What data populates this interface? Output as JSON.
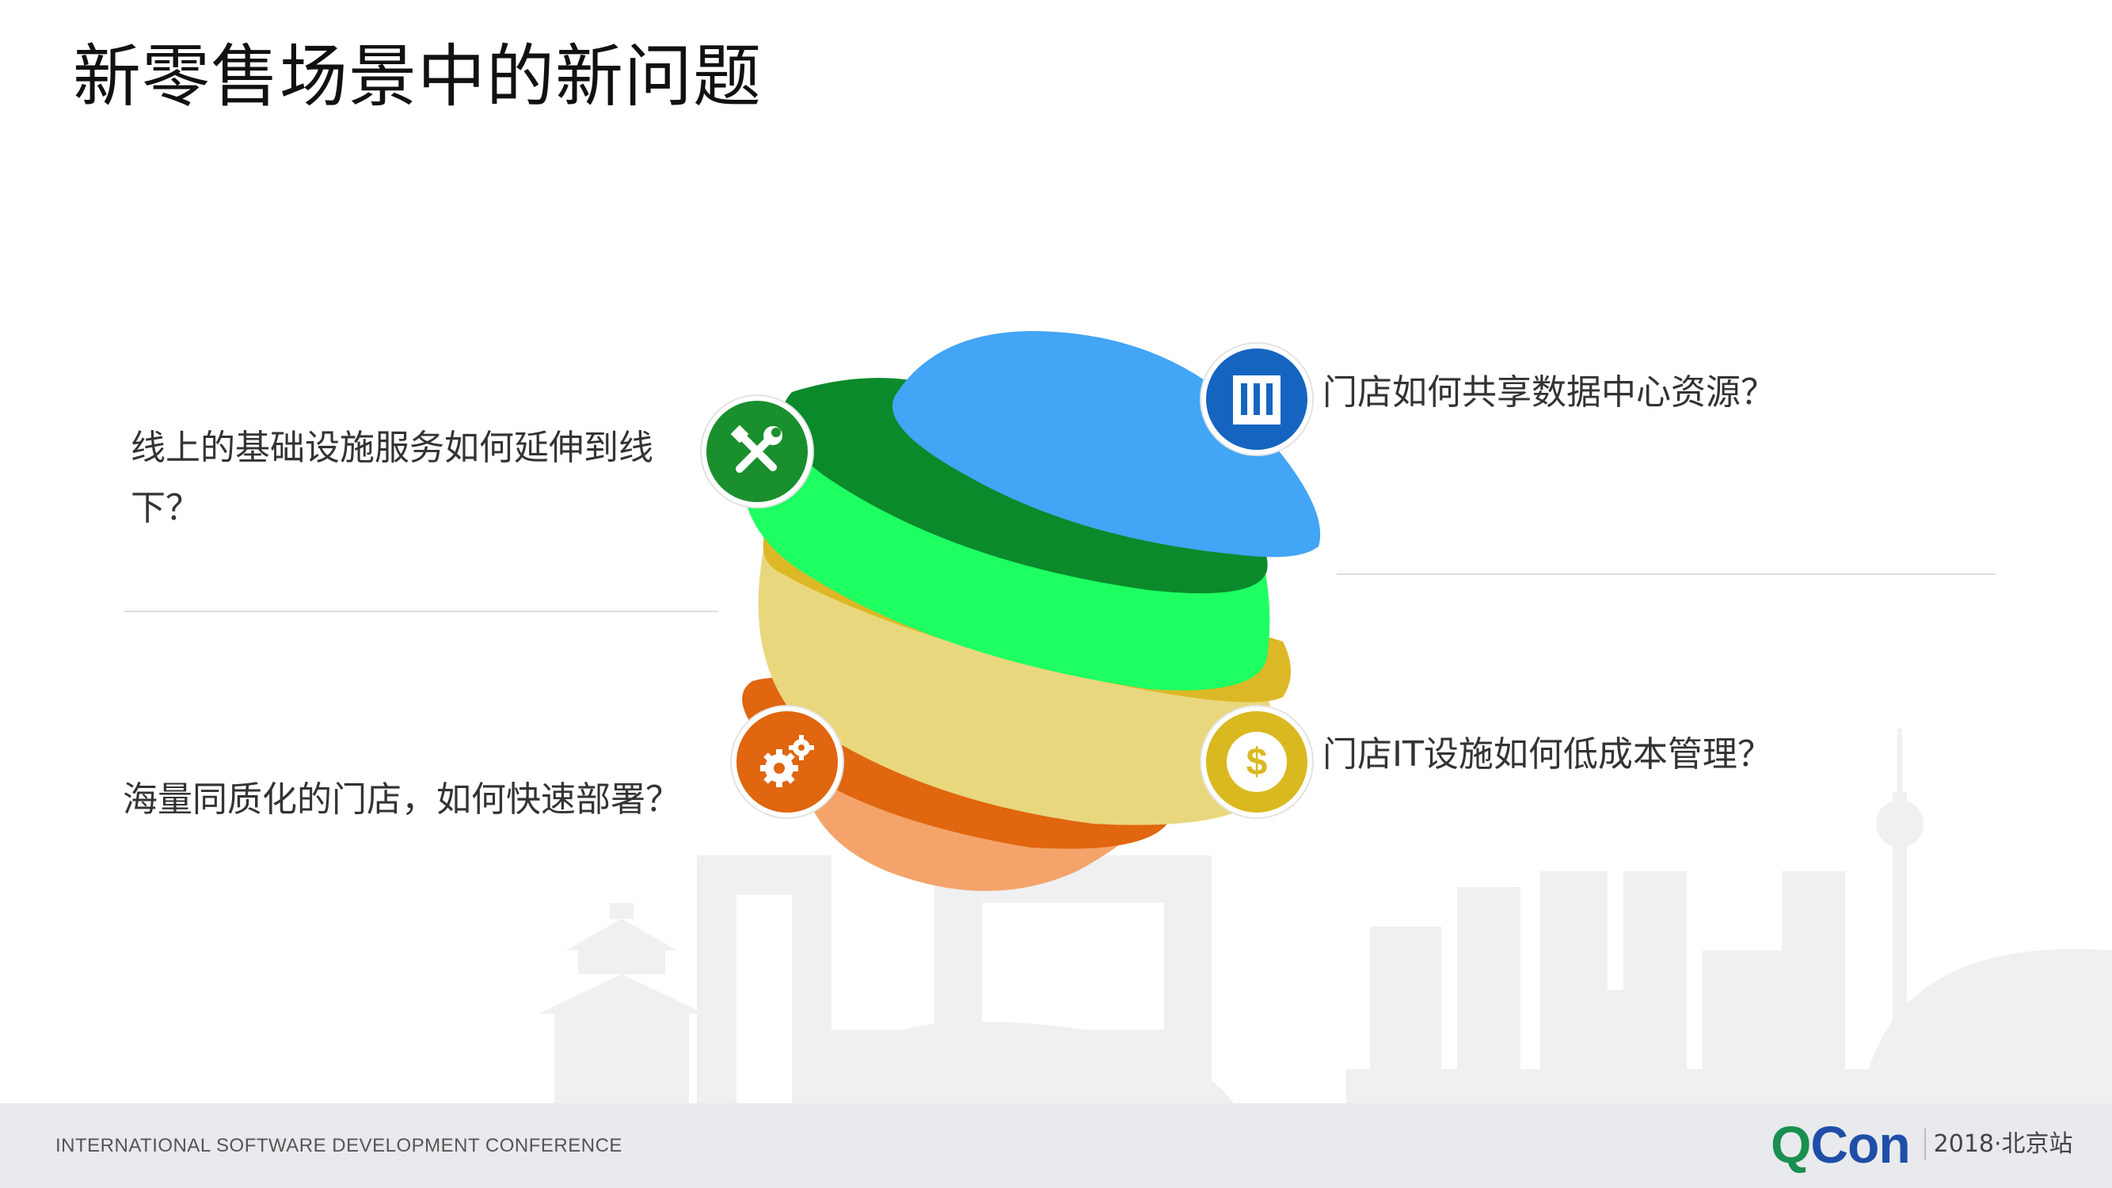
{
  "slide": {
    "title": "新零售场景中的新问题"
  },
  "items": [
    {
      "text": "线上的基础设施服务如何延伸到线下？",
      "icon": "tools-icon",
      "color": "#1a8f2e"
    },
    {
      "text": "门店如何共享数据中心资源？",
      "icon": "building-icon",
      "color": "#1565c0"
    },
    {
      "text": "门店IT设施如何低成本管理？",
      "icon": "dollar-icon",
      "color": "#dab820"
    },
    {
      "text": "海量同质化的门店，如何快速部署？",
      "icon": "gears-icon",
      "color": "#e0660f"
    }
  ],
  "layers": {
    "blue": "#42a5f5",
    "dark_green": "#0b8a2b",
    "bright_green": "#1eff62",
    "mustard": "#dcb826",
    "pale_yellow": "#e9d77d",
    "dark_orange": "#e0660f",
    "light_orange": "#f4a46a"
  },
  "footer": {
    "conference": "INTERNATIONAL SOFTWARE DEVELOPMENT CONFERENCE",
    "logo_q": "Q",
    "logo_con": "Con",
    "event": "2018·北京站"
  }
}
